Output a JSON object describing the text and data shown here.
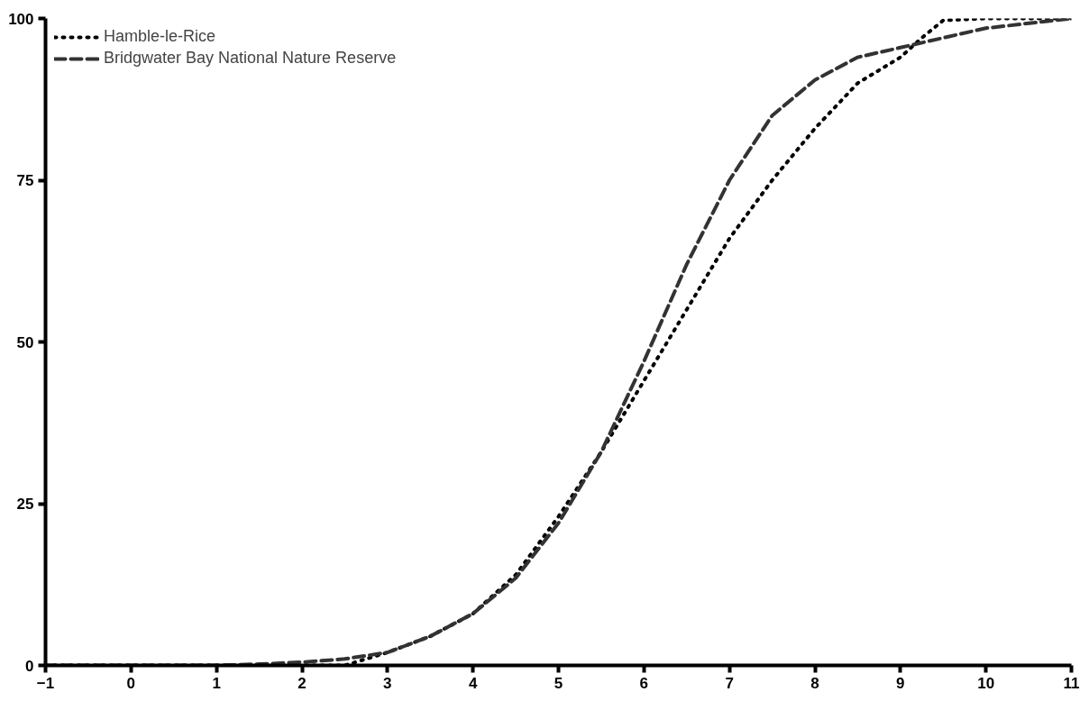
{
  "chart_data": {
    "type": "line",
    "xlim": [
      -1,
      11
    ],
    "xticks": [
      -1,
      0,
      1,
      2,
      3,
      4,
      5,
      6,
      7,
      8,
      9,
      10,
      11
    ],
    "ylim": [
      0,
      100
    ],
    "yticks": [
      0,
      25,
      50,
      75,
      100
    ],
    "grid": false,
    "legend": "top left",
    "series": [
      {
        "name": "Hamble-le-Rice",
        "color": "#000000",
        "line_style": "dotted",
        "x": [
          -1,
          0,
          1,
          2,
          2.5,
          3,
          3.5,
          4,
          4.5,
          5,
          5.5,
          6,
          6.5,
          7,
          7.5,
          8,
          8.5,
          9,
          9.25,
          9.5,
          10,
          11
        ],
        "values": [
          0,
          0,
          0,
          0,
          0,
          2,
          4.5,
          8,
          14,
          23,
          33,
          44,
          55,
          66,
          75,
          83,
          90,
          94,
          97,
          99.7,
          100,
          100
        ]
      },
      {
        "name": "Bridgwater Bay National Nature Reserve",
        "color": "#333333",
        "line_style": "dashed",
        "x": [
          -1,
          0,
          1,
          1.5,
          2,
          2.5,
          3,
          3.5,
          4,
          4.5,
          5,
          5.5,
          6,
          6.5,
          7,
          7.5,
          8,
          8.5,
          9,
          9.5,
          10,
          11
        ],
        "values": [
          0,
          0,
          0,
          0.2,
          0.5,
          1,
          2,
          4.5,
          8,
          13.5,
          22,
          33,
          47,
          62,
          75,
          85,
          90.5,
          94,
          95.5,
          97,
          98.5,
          100
        ]
      }
    ]
  }
}
